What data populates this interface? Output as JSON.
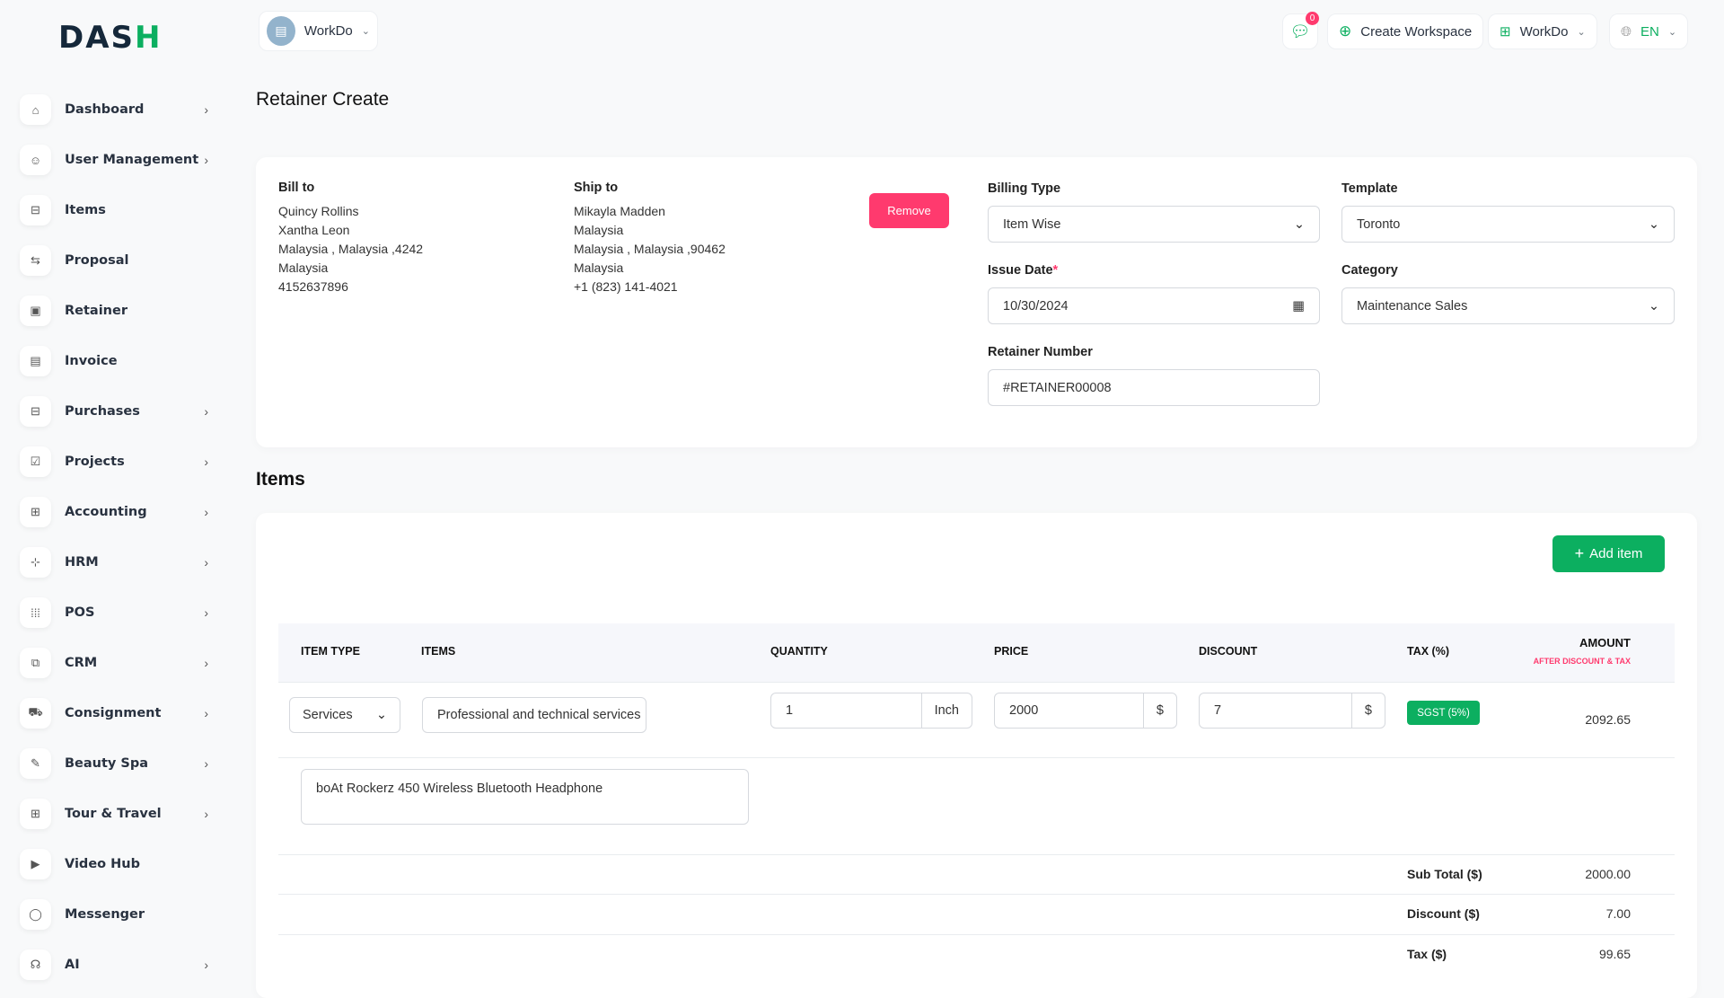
{
  "logo": {
    "text_main": "DAS",
    "text_accent": "H"
  },
  "header": {
    "workspace_name": "WorkDo",
    "messages_count": "0",
    "create_workspace": "Create Workspace",
    "workspace_switch": "WorkDo",
    "language": "EN"
  },
  "sidebar": {
    "items": [
      {
        "label": "Dashboard",
        "icon": "home-icon",
        "glyph": "⌂",
        "chevron": true
      },
      {
        "label": "User Management",
        "icon": "users-icon",
        "glyph": "☺",
        "chevron": true
      },
      {
        "label": "Items",
        "icon": "cart-icon",
        "glyph": "⊟",
        "chevron": false
      },
      {
        "label": "Proposal",
        "icon": "proposal-icon",
        "glyph": "⇆",
        "chevron": false
      },
      {
        "label": "Retainer",
        "icon": "retainer-icon",
        "glyph": "▣",
        "chevron": false
      },
      {
        "label": "Invoice",
        "icon": "invoice-icon",
        "glyph": "▤",
        "chevron": false
      },
      {
        "label": "Purchases",
        "icon": "cart-icon",
        "glyph": "⊟",
        "chevron": true
      },
      {
        "label": "Projects",
        "icon": "projects-icon",
        "glyph": "☑",
        "chevron": true
      },
      {
        "label": "Accounting",
        "icon": "apps-icon",
        "glyph": "⊞",
        "chevron": true
      },
      {
        "label": "HRM",
        "icon": "hrm-icon",
        "glyph": "⊹",
        "chevron": true
      },
      {
        "label": "POS",
        "icon": "grid-icon",
        "glyph": "⁞⁞⁞",
        "chevron": true
      },
      {
        "label": "CRM",
        "icon": "crm-icon",
        "glyph": "⧉",
        "chevron": true
      },
      {
        "label": "Consignment",
        "icon": "truck-icon",
        "glyph": "⛟",
        "chevron": true
      },
      {
        "label": "Beauty Spa",
        "icon": "brush-icon",
        "glyph": "✎",
        "chevron": true
      },
      {
        "label": "Tour & Travel",
        "icon": "apps-icon",
        "glyph": "⊞",
        "chevron": true
      },
      {
        "label": "Video Hub",
        "icon": "video-icon",
        "glyph": "▶",
        "chevron": false
      },
      {
        "label": "Messenger",
        "icon": "message-icon",
        "glyph": "◯",
        "chevron": false
      },
      {
        "label": "AI",
        "icon": "ai-icon",
        "glyph": "☊",
        "chevron": true
      }
    ]
  },
  "page": {
    "title": "Retainer Create"
  },
  "bill_to": {
    "label": "Bill to",
    "lines": [
      "Quincy Rollins",
      "Xantha Leon",
      "Malaysia , Malaysia ,4242",
      "Malaysia",
      "4152637896"
    ]
  },
  "ship_to": {
    "label": "Ship to",
    "lines": [
      "Mikayla Madden",
      "Malaysia",
      "Malaysia , Malaysia ,90462",
      "Malaysia",
      "+1 (823) 141-4021"
    ]
  },
  "remove_label": "Remove",
  "form": {
    "billing_type": {
      "label": "Billing Type",
      "value": "Item Wise"
    },
    "template": {
      "label": "Template",
      "value": "Toronto"
    },
    "issue_date": {
      "label": "Issue Date",
      "required": "*",
      "value": "10/30/2024"
    },
    "category": {
      "label": "Category",
      "value": "Maintenance Sales"
    },
    "retainer_number": {
      "label": "Retainer Number",
      "value": "#RETAINER00008"
    }
  },
  "items_section": {
    "title": "Items",
    "add_label": "Add item",
    "columns": {
      "item_type": "ITEM TYPE",
      "items": "ITEMS",
      "quantity": "QUANTITY",
      "price": "PRICE",
      "discount": "DISCOUNT",
      "tax": "TAX (%)",
      "amount": "AMOUNT",
      "amount_sub": "AFTER DISCOUNT & TAX"
    },
    "row": {
      "item_type": "Services",
      "item": "Professional and technical services",
      "quantity": "1",
      "unit": "Inch",
      "price": "2000",
      "price_currency": "$",
      "discount": "7",
      "discount_currency": "$",
      "tax": "SGST (5%)",
      "amount": "2092.65",
      "description": "boAt Rockerz 450 Wireless Bluetooth Headphone"
    },
    "totals": [
      {
        "label": "Sub Total ($)",
        "value": "2000.00"
      },
      {
        "label": "Discount ($)",
        "value": "7.00"
      },
      {
        "label": "Tax ($)",
        "value": "99.65"
      }
    ]
  },
  "colors": {
    "accent": "#0caf60",
    "danger": "#ff3a6e"
  }
}
